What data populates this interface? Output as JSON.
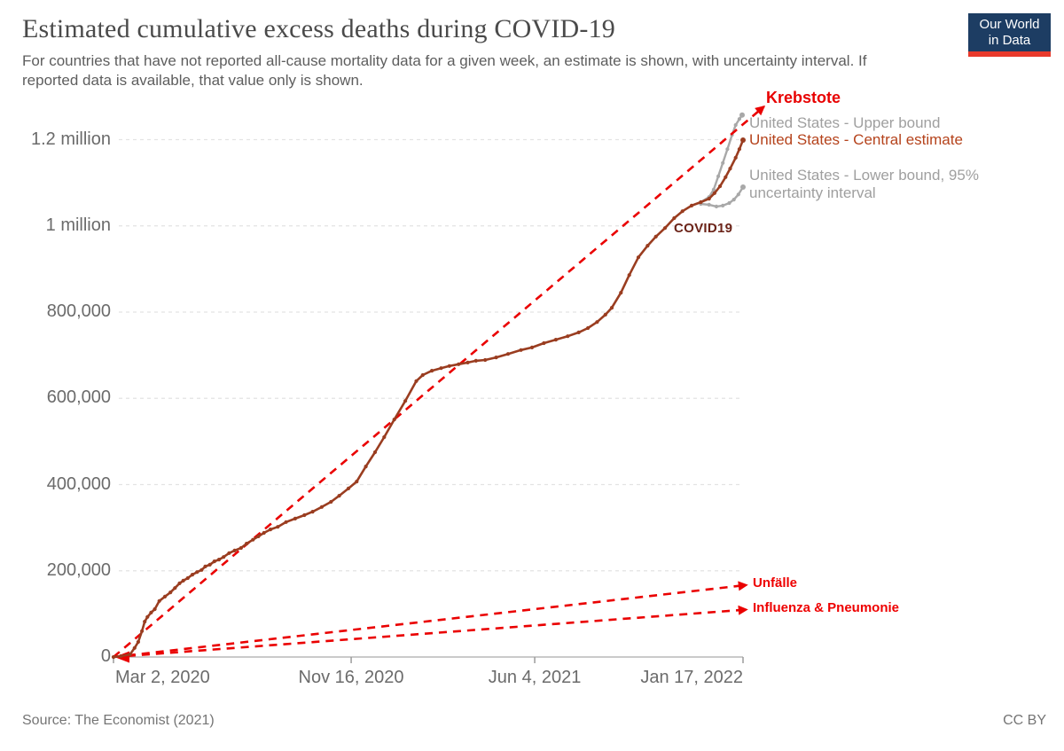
{
  "header": {
    "title": "Estimated cumulative excess deaths during COVID-19",
    "subtitle": "For countries that have not reported all-cause mortality data for a given week, an estimate is shown, with uncertainty interval. If reported data is available, that value only is shown.",
    "logo": {
      "line1": "Our World",
      "line2": "in Data"
    }
  },
  "footer": {
    "source": "Source: The Economist (2021)",
    "license": "CC BY"
  },
  "colors": {
    "central_line": "#9a3d20",
    "bound_line": "#a8a8a8",
    "annotation_red": "#ea0000",
    "grid": "#e3e3e3",
    "axis": "#b8b8b8",
    "tick": "#9b9b9b"
  },
  "chart_data": {
    "type": "line",
    "title": "Estimated cumulative excess deaths during COVID-19",
    "x_axis": {
      "unit": "days since Mar 2, 2020",
      "domain_days": [
        0,
        686
      ],
      "ticks": [
        {
          "day": 0,
          "label": "Mar 2, 2020",
          "align": "left"
        },
        {
          "day": 259,
          "label": "Nov 16, 2020",
          "align": "center"
        },
        {
          "day": 459,
          "label": "Jun 4, 2021",
          "align": "center"
        },
        {
          "day": 686,
          "label": "Jan 17, 2022",
          "align": "right"
        }
      ]
    },
    "y_axis": {
      "range": [
        0,
        1200000
      ],
      "gridlines": true,
      "ticks": [
        {
          "value": 0,
          "label": "0"
        },
        {
          "value": 200000,
          "label": "200,000"
        },
        {
          "value": 400000,
          "label": "400,000"
        },
        {
          "value": 600000,
          "label": "600,000"
        },
        {
          "value": 800000,
          "label": "800,000"
        },
        {
          "value": 1000000,
          "label": "1 million"
        },
        {
          "value": 1200000,
          "label": "1.2 million"
        }
      ]
    },
    "series": [
      {
        "name": "United States - Central estimate",
        "style": "solid-with-markers",
        "points": [
          [
            0,
            0
          ],
          [
            8,
            2000
          ],
          [
            18,
            6000
          ],
          [
            23,
            21000
          ],
          [
            27,
            35000
          ],
          [
            31,
            60000
          ],
          [
            34,
            82000
          ],
          [
            37,
            93000
          ],
          [
            41,
            103000
          ],
          [
            45,
            111000
          ],
          [
            50,
            130000
          ],
          [
            56,
            140000
          ],
          [
            62,
            150000
          ],
          [
            67,
            160000
          ],
          [
            72,
            171000
          ],
          [
            76,
            177000
          ],
          [
            81,
            183000
          ],
          [
            86,
            191000
          ],
          [
            91,
            197000
          ],
          [
            96,
            202000
          ],
          [
            100,
            210000
          ],
          [
            105,
            214000
          ],
          [
            110,
            222000
          ],
          [
            115,
            226000
          ],
          [
            120,
            232000
          ],
          [
            126,
            241000
          ],
          [
            132,
            247000
          ],
          [
            139,
            253000
          ],
          [
            145,
            263000
          ],
          [
            152,
            272000
          ],
          [
            158,
            280000
          ],
          [
            164,
            288000
          ],
          [
            171,
            296000
          ],
          [
            179,
            302000
          ],
          [
            188,
            313000
          ],
          [
            198,
            321000
          ],
          [
            208,
            329000
          ],
          [
            217,
            337000
          ],
          [
            227,
            348000
          ],
          [
            237,
            360000
          ],
          [
            246,
            374000
          ],
          [
            256,
            391000
          ],
          [
            265,
            407000
          ],
          [
            275,
            442000
          ],
          [
            285,
            475000
          ],
          [
            295,
            510000
          ],
          [
            306,
            551000
          ],
          [
            318,
            594000
          ],
          [
            330,
            640000
          ],
          [
            337,
            654000
          ],
          [
            347,
            664000
          ],
          [
            357,
            670000
          ],
          [
            366,
            675000
          ],
          [
            376,
            679000
          ],
          [
            386,
            683000
          ],
          [
            395,
            687000
          ],
          [
            405,
            689000
          ],
          [
            417,
            695000
          ],
          [
            430,
            703000
          ],
          [
            444,
            712000
          ],
          [
            456,
            718000
          ],
          [
            469,
            728000
          ],
          [
            482,
            736000
          ],
          [
            495,
            744000
          ],
          [
            507,
            753000
          ],
          [
            517,
            763000
          ],
          [
            527,
            777000
          ],
          [
            536,
            794000
          ],
          [
            543,
            810000
          ],
          [
            553,
            845000
          ],
          [
            562,
            886000
          ],
          [
            572,
            927000
          ],
          [
            582,
            954000
          ],
          [
            591,
            975000
          ],
          [
            601,
            995000
          ],
          [
            611,
            1018000
          ],
          [
            620,
            1034000
          ],
          [
            630,
            1047000
          ],
          [
            640,
            1055000
          ],
          [
            649,
            1063000
          ],
          [
            655,
            1076000
          ],
          [
            661,
            1092000
          ],
          [
            667,
            1113000
          ],
          [
            672,
            1133000
          ],
          [
            678,
            1158000
          ],
          [
            682,
            1178000
          ],
          [
            686,
            1199000
          ]
        ]
      },
      {
        "name": "United States - Upper bound",
        "style": "solid-with-markers",
        "points": [
          [
            640,
            1055000
          ],
          [
            649,
            1067000
          ],
          [
            654,
            1084000
          ],
          [
            659,
            1115000
          ],
          [
            664,
            1146000
          ],
          [
            669,
            1178000
          ],
          [
            674,
            1211000
          ],
          [
            678,
            1234000
          ],
          [
            682,
            1248000
          ],
          [
            685,
            1257000
          ]
        ]
      },
      {
        "name": "United States - Lower bound, 95% uncertainty interval",
        "style": "solid-with-markers",
        "points": [
          [
            640,
            1051000
          ],
          [
            649,
            1049000
          ],
          [
            657,
            1045000
          ],
          [
            664,
            1047000
          ],
          [
            671,
            1053000
          ],
          [
            676,
            1061000
          ],
          [
            681,
            1073000
          ],
          [
            686,
            1090000
          ]
        ]
      }
    ],
    "annotation_arrows": [
      {
        "name": "Krebstote",
        "from": [
          0,
          0
        ],
        "to": [
          709,
          1277000
        ]
      },
      {
        "name": "Unfälle",
        "from": [
          0,
          0
        ],
        "to": [
          690,
          167000
        ]
      },
      {
        "name": "Influenza & Pneumonie",
        "from": [
          0,
          0
        ],
        "to": [
          690,
          110000
        ]
      }
    ],
    "line_labels": {
      "upper": "United States - Upper bound",
      "central": "United States - Central estimate",
      "lower_line1": "United States - Lower bound, 95%",
      "lower_line2": "uncertainty interval"
    },
    "annotations": {
      "krebstote": "Krebstote",
      "covid": "COVID19",
      "unfaelle": "Unfälle",
      "influenza": "Influenza & Pneumonie"
    },
    "legend_position": "right-of-line-ends"
  }
}
